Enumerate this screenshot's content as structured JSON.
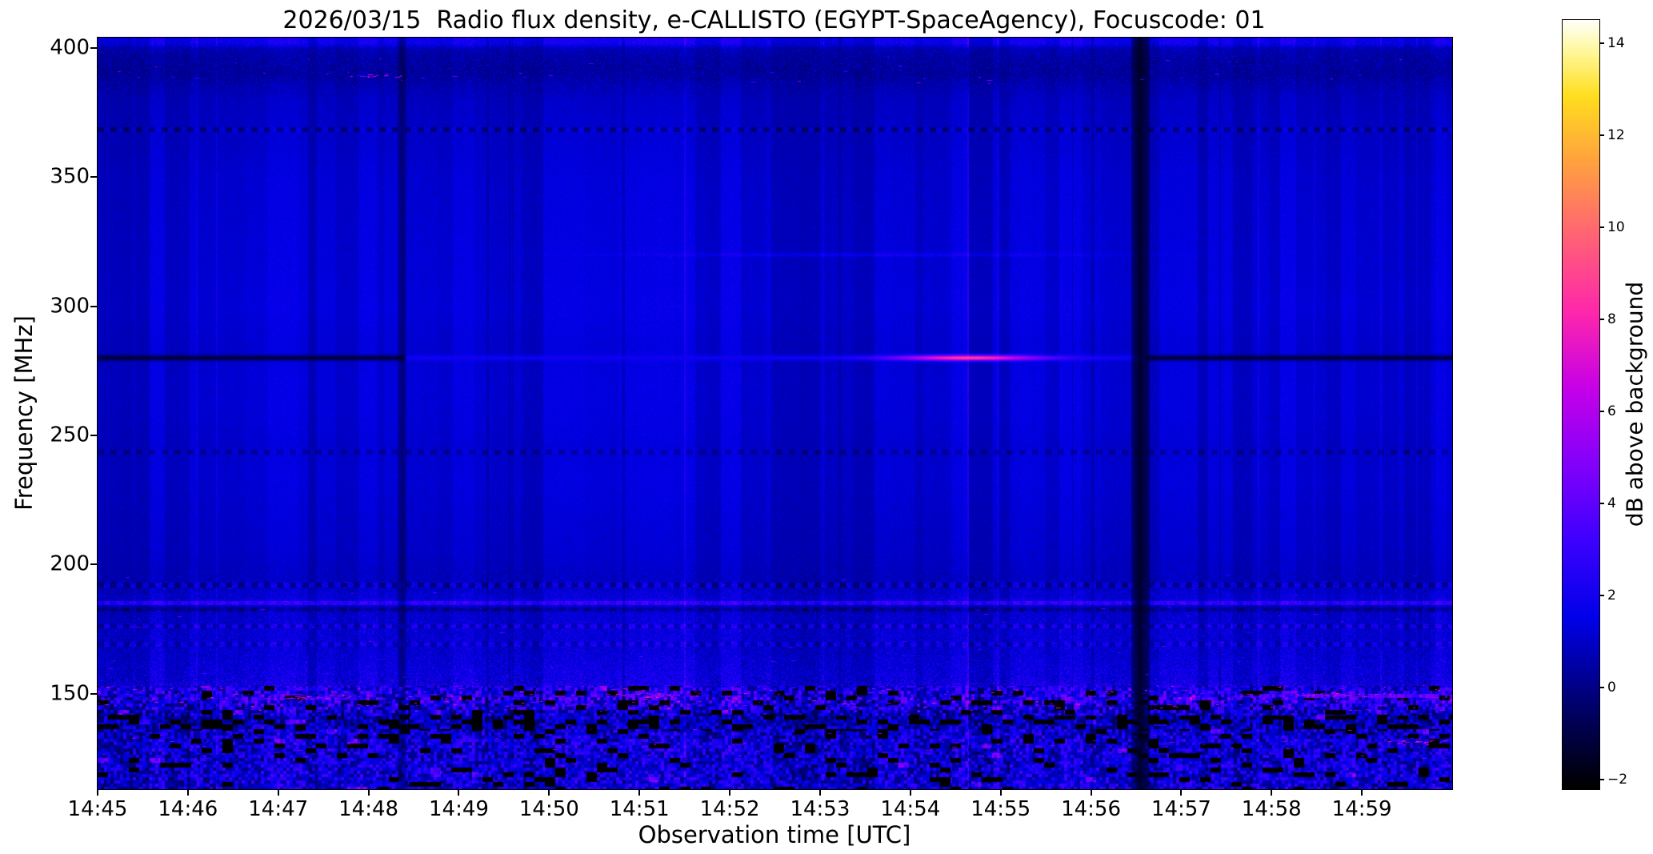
{
  "chart_data": {
    "type": "heatmap",
    "title": "2026/03/15  Radio flux density, e-CALLISTO (EGYPT-SpaceAgency), Focuscode: 01",
    "xlabel": "Observation time [UTC]",
    "ylabel": "Frequency [MHz]",
    "colorbar_label": "dB above background",
    "x_ticks": [
      "14:45",
      "14:46",
      "14:47",
      "14:48",
      "14:49",
      "14:50",
      "14:51",
      "14:52",
      "14:53",
      "14:54",
      "14:55",
      "14:56",
      "14:57",
      "14:58",
      "14:59"
    ],
    "x_tick_minutes": [
      0,
      1,
      2,
      3,
      4,
      5,
      6,
      7,
      8,
      9,
      10,
      11,
      12,
      13,
      14
    ],
    "x_range_minutes": [
      0,
      15
    ],
    "y_ticks_mhz": [
      150,
      200,
      250,
      300,
      350,
      400
    ],
    "y_range_mhz": [
      113,
      404
    ],
    "colorbar_ticks_db": [
      -2,
      0,
      2,
      4,
      6,
      8,
      10,
      12,
      14
    ],
    "colorbar_range_db": [
      -2.2,
      14.5
    ],
    "colormap": "gnuplot2-like (black-blue-violet-magenta-yellow-white)",
    "colormap_stops": [
      {
        "t": 0.0,
        "rgb": [
          0,
          0,
          0
        ]
      },
      {
        "t": 0.1,
        "rgb": [
          0,
          0,
          100
        ]
      },
      {
        "t": 0.22,
        "rgb": [
          0,
          0,
          232
        ]
      },
      {
        "t": 0.32,
        "rgb": [
          60,
          0,
          255
        ]
      },
      {
        "t": 0.42,
        "rgb": [
          130,
          0,
          250
        ]
      },
      {
        "t": 0.52,
        "rgb": [
          198,
          0,
          232
        ]
      },
      {
        "t": 0.62,
        "rgb": [
          255,
          40,
          170
        ]
      },
      {
        "t": 0.72,
        "rgb": [
          255,
          100,
          115
        ]
      },
      {
        "t": 0.82,
        "rgb": [
          255,
          165,
          60
        ]
      },
      {
        "t": 0.9,
        "rgb": [
          255,
          222,
          30
        ]
      },
      {
        "t": 0.96,
        "rgb": [
          255,
          248,
          160
        ]
      },
      {
        "t": 1.0,
        "rgb": [
          255,
          255,
          255
        ]
      }
    ],
    "background_level_db": [
      [
        404,
        1.6
      ],
      [
        402,
        1.8
      ],
      [
        400,
        0.7
      ],
      [
        396,
        0.45
      ],
      [
        390,
        0.35
      ],
      [
        386,
        0.6
      ],
      [
        380,
        0.85
      ],
      [
        366,
        0.95
      ],
      [
        350,
        1.1
      ],
      [
        310,
        1.2
      ],
      [
        300,
        1.25
      ],
      [
        285,
        1.1
      ],
      [
        270,
        1.2
      ],
      [
        255,
        1.15
      ],
      [
        245,
        1.05
      ],
      [
        235,
        1.15
      ],
      [
        215,
        1.0
      ],
      [
        205,
        0.95
      ],
      [
        198,
        0.85
      ],
      [
        194,
        0.8
      ],
      [
        190,
        1.0
      ],
      [
        186,
        1.3
      ],
      [
        183,
        0.9
      ],
      [
        180,
        1.1
      ],
      [
        176,
        1.2
      ],
      [
        166,
        1.2
      ],
      [
        160,
        1.4
      ],
      [
        155,
        1.5
      ],
      [
        151,
        1.9
      ],
      [
        147,
        2.0
      ],
      [
        144,
        1.6
      ],
      [
        141,
        0.9
      ],
      [
        138,
        0.8
      ],
      [
        134,
        1.3
      ],
      [
        130,
        1.5
      ],
      [
        126,
        1.3
      ],
      [
        121,
        1.4
      ],
      [
        113,
        1.4
      ]
    ],
    "noise_amp_db": [
      [
        404,
        0.5
      ],
      [
        398,
        0.8
      ],
      [
        392,
        0.9
      ],
      [
        386,
        0.7
      ],
      [
        380,
        0.35
      ],
      [
        300,
        0.3
      ],
      [
        200,
        0.35
      ],
      [
        196,
        0.6
      ],
      [
        190,
        0.8
      ],
      [
        180,
        0.9
      ],
      [
        164,
        0.9
      ],
      [
        156,
        1.1
      ],
      [
        152,
        1.8
      ],
      [
        148,
        2.4
      ],
      [
        144,
        2.2
      ],
      [
        140,
        1.6
      ],
      [
        134,
        1.7
      ],
      [
        124,
        1.7
      ],
      [
        113,
        1.7
      ]
    ],
    "features": {
      "narrowband_line_280": {
        "freq_mhz": 280,
        "segments": [
          {
            "t_min": 0.0,
            "t_max": 3.4,
            "level_db": -1.2
          },
          {
            "t_min": 3.4,
            "t_max": 11.6,
            "level_db": 2.0
          },
          {
            "t_min": 11.6,
            "t_max": 15.0,
            "level_db": -1.2
          }
        ],
        "burst": {
          "t_center_min": 9.65,
          "peak_db": 7.0,
          "sigma_min": 0.55
        }
      },
      "faint_line_320": {
        "freq_mhz": 320,
        "t_center_min": 8.5,
        "t_sigma_min": 1.8,
        "extra_db": 0.8
      },
      "dark_vertical_bands": [
        {
          "t_center_min": 11.55,
          "half_width_min": 0.1,
          "strength": 0.9
        },
        {
          "t_center_min": 3.37,
          "half_width_min": 0.05,
          "strength": 0.5
        }
      ],
      "dashed_lines": [
        {
          "freq_mhz": 368.5,
          "bright_db": 0.4,
          "dark_db": -1.6
        },
        {
          "freq_mhz": 243.5,
          "bright_db": 0.2,
          "dark_db": -1.2
        },
        {
          "freq_mhz": 192.0,
          "bright_db": 1.0,
          "dark_db": -1.4
        },
        {
          "freq_mhz": 185.0,
          "bright_db": 2.6,
          "dark_db": 1.8
        },
        {
          "freq_mhz": 182.5,
          "bright_db": -0.6,
          "dark_db": -1.4
        },
        {
          "freq_mhz": 176.0,
          "bright_db": 1.4,
          "dark_db": -0.9
        },
        {
          "freq_mhz": 169.0,
          "bright_db": 1.1,
          "dark_db": -0.8
        }
      ],
      "persistent_rfi": [
        {
          "freq_mhz": 149.0,
          "t_min": 12.6,
          "t_max": 14.95,
          "level_db": 4.5
        },
        {
          "freq_mhz": 148.5,
          "t_min": 0.9,
          "t_max": 3.2,
          "level_db": 3.5
        }
      ],
      "rfi_hotspots": [
        {
          "t_min_center": 6.2,
          "freq_mhz": 149,
          "t_spread": 0.5,
          "n": 60
        },
        {
          "t_min_center": 2.4,
          "freq_mhz": 148.5,
          "t_spread": 0.8,
          "n": 45
        },
        {
          "t_min_center": 13.8,
          "freq_mhz": 149.5,
          "t_spread": 0.9,
          "n": 65
        },
        {
          "t_min_center": 14.6,
          "freq_mhz": 131,
          "t_spread": 0.35,
          "n": 22
        },
        {
          "t_min_center": 3.1,
          "freq_mhz": 389,
          "t_spread": 0.5,
          "n": 18
        }
      ],
      "speckle_bands": [
        {
          "freq_lo": 143,
          "freq_hi": 153,
          "weight": 0.52,
          "v_lo": 2.5,
          "v_hi": 8.5
        },
        {
          "freq_lo": 124,
          "freq_hi": 136,
          "weight": 0.16,
          "v_lo": 2.2,
          "v_hi": 6.5
        },
        {
          "freq_lo": 154,
          "freq_hi": 170,
          "weight": 0.1,
          "v_lo": 2.0,
          "v_hi": 4.5
        },
        {
          "freq_lo": 172,
          "freq_hi": 187,
          "weight": 0.08,
          "v_lo": 2.0,
          "v_hi": 5.0
        },
        {
          "freq_lo": 386,
          "freq_hi": 397,
          "weight": 0.08,
          "v_lo": 2.0,
          "v_hi": 5.5
        },
        {
          "freq_lo": 188,
          "freq_hi": 196,
          "weight": 0.06,
          "v_lo": 2.0,
          "v_hi": 4.0
        }
      ],
      "speckle_count": 750
    }
  },
  "layout_colors": {
    "background": "#ffffff",
    "text": "#000000",
    "axes": "#000000"
  }
}
